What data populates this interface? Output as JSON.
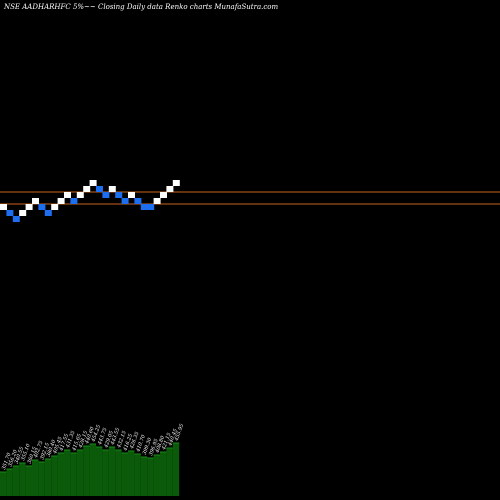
{
  "chart_data": {
    "type": "renko",
    "title": "NSE AADHARHFC 5%~~ Closing Daily data Renko charts MunafaSutra.com",
    "colors": {
      "background": "#000000",
      "up_brick": "#ffffff",
      "down_brick": "#1e6ef0",
      "reference_line": "#c8641e",
      "volume_bar": "#0a5a0a",
      "volume_bar_top": "#1a8a1a"
    },
    "reference_lines": [
      "upper",
      "lower"
    ],
    "bricks": [
      {
        "i": 0,
        "level": 0,
        "dir": "up"
      },
      {
        "i": 1,
        "level": -1,
        "dir": "down"
      },
      {
        "i": 2,
        "level": -2,
        "dir": "down"
      },
      {
        "i": 3,
        "level": -1,
        "dir": "up"
      },
      {
        "i": 4,
        "level": 0,
        "dir": "up"
      },
      {
        "i": 5,
        "level": 1,
        "dir": "up"
      },
      {
        "i": 6,
        "level": 0,
        "dir": "down"
      },
      {
        "i": 7,
        "level": -1,
        "dir": "down"
      },
      {
        "i": 8,
        "level": 0,
        "dir": "up"
      },
      {
        "i": 9,
        "level": 1,
        "dir": "up"
      },
      {
        "i": 10,
        "level": 2,
        "dir": "up"
      },
      {
        "i": 11,
        "level": 1,
        "dir": "down"
      },
      {
        "i": 12,
        "level": 2,
        "dir": "up"
      },
      {
        "i": 13,
        "level": 3,
        "dir": "up"
      },
      {
        "i": 14,
        "level": 4,
        "dir": "up"
      },
      {
        "i": 15,
        "level": 3,
        "dir": "down"
      },
      {
        "i": 16,
        "level": 2,
        "dir": "down"
      },
      {
        "i": 17,
        "level": 3,
        "dir": "up"
      },
      {
        "i": 18,
        "level": 2,
        "dir": "down"
      },
      {
        "i": 19,
        "level": 1,
        "dir": "down"
      },
      {
        "i": 20,
        "level": 2,
        "dir": "up"
      },
      {
        "i": 21,
        "level": 1,
        "dir": "down"
      },
      {
        "i": 22,
        "level": 0,
        "dir": "down"
      },
      {
        "i": 23,
        "level": 0,
        "dir": "down"
      },
      {
        "i": 24,
        "level": 1,
        "dir": "up"
      },
      {
        "i": 25,
        "level": 2,
        "dir": "up"
      },
      {
        "i": 26,
        "level": 3,
        "dir": "up"
      },
      {
        "i": 27,
        "level": 4,
        "dir": "up"
      }
    ],
    "volume": [
      {
        "label": "351.70",
        "value": 24
      },
      {
        "label": "356.20",
        "value": 27
      },
      {
        "label": "340.55",
        "value": 30
      },
      {
        "label": "355.10",
        "value": 33
      },
      {
        "label": "360.15",
        "value": 30
      },
      {
        "label": "402.75",
        "value": 36
      },
      {
        "label": "392.15",
        "value": 34
      },
      {
        "label": "380.40",
        "value": 37
      },
      {
        "label": "405.45",
        "value": 40
      },
      {
        "label": "417.55",
        "value": 43
      },
      {
        "label": "431.35",
        "value": 46
      },
      {
        "label": "415.65",
        "value": 43
      },
      {
        "label": "428.15",
        "value": 46
      },
      {
        "label": "440.60",
        "value": 50
      },
      {
        "label": "454.25",
        "value": 52
      },
      {
        "label": "443.75",
        "value": 49
      },
      {
        "label": "429.05",
        "value": 46
      },
      {
        "label": "443.55",
        "value": 49
      },
      {
        "label": "432.15",
        "value": 46
      },
      {
        "label": "416.25",
        "value": 43
      },
      {
        "label": "426.35",
        "value": 45
      },
      {
        "label": "410.70",
        "value": 42
      },
      {
        "label": "399.30",
        "value": 39
      },
      {
        "label": "396.95",
        "value": 38
      },
      {
        "label": "408.80",
        "value": 41
      },
      {
        "label": "421.15",
        "value": 44
      },
      {
        "label": "440.45",
        "value": 48
      },
      {
        "label": "455.95",
        "value": 53
      }
    ]
  }
}
